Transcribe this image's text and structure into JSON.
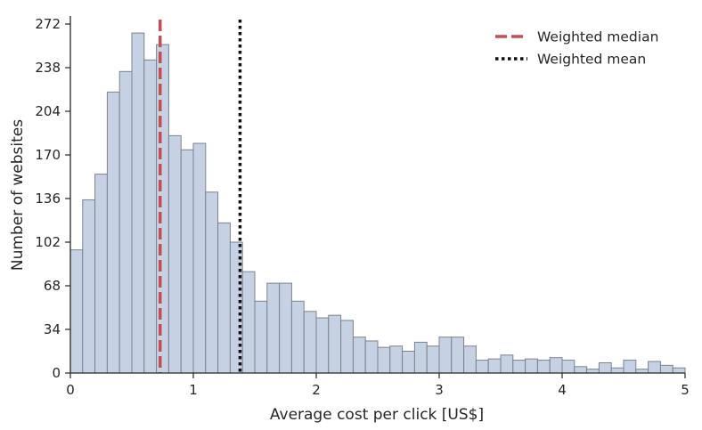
{
  "chart_data": {
    "type": "bar",
    "title": "",
    "xlabel": "Average cost per click [US$]",
    "ylabel": "Number of websites",
    "xlim": [
      0,
      5
    ],
    "ylim": [
      0,
      280
    ],
    "xticks": [
      0,
      1,
      2,
      3,
      4,
      5
    ],
    "xtick_labels": [
      "0",
      "1",
      "2",
      "3",
      "4",
      "5"
    ],
    "yticks": [
      0,
      34,
      68,
      102,
      136,
      170,
      204,
      238,
      272
    ],
    "ytick_labels": [
      "0",
      "34",
      "68",
      "102",
      "136",
      "170",
      "204",
      "238",
      "272"
    ],
    "grid": false,
    "legend_position": "top-right",
    "bin_width": 0.1,
    "bin_edges_start": [
      0,
      0.1,
      0.2,
      0.3,
      0.4,
      0.5,
      0.6,
      0.7,
      0.8,
      0.9,
      1.0,
      1.1,
      1.2,
      1.3,
      1.4,
      1.5,
      1.6,
      1.7,
      1.8,
      1.9,
      2.0,
      2.1,
      2.2,
      2.3,
      2.4,
      2.5,
      2.6,
      2.7,
      2.8,
      2.9,
      3.0,
      3.1,
      3.2,
      3.3,
      3.4,
      3.5,
      3.6,
      3.7,
      3.8,
      3.9,
      4.0,
      4.1,
      4.2,
      4.3,
      4.4,
      4.5,
      4.6,
      4.7,
      4.8,
      4.9
    ],
    "values": [
      96,
      135,
      155,
      219,
      235,
      265,
      244,
      256,
      185,
      174,
      179,
      141,
      117,
      102,
      79,
      56,
      70,
      70,
      56,
      48,
      43,
      45,
      41,
      28,
      25,
      20,
      21,
      17,
      24,
      21,
      28,
      28,
      21,
      10,
      11,
      14,
      10,
      11,
      10,
      12,
      10,
      5,
      3,
      8,
      4,
      10,
      3,
      9,
      6,
      4
    ],
    "bar_color": "#c6d2e3",
    "bar_edge_color": "#7b8290",
    "reference_lines": [
      {
        "name": "Weighted median",
        "x": 0.73,
        "style": "dashed",
        "color": "#c44e52"
      },
      {
        "name": "Weighted mean",
        "x": 1.38,
        "style": "dotted",
        "color": "#111111"
      }
    ]
  }
}
